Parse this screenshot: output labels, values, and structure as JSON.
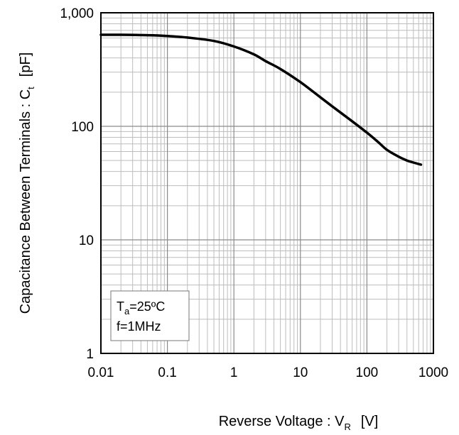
{
  "chart_data": {
    "type": "line",
    "xscale": "log",
    "yscale": "log",
    "xlim": [
      0.01,
      1000
    ],
    "ylim": [
      1,
      1000
    ],
    "x_ticks": [
      "0.01",
      "0.1",
      "1",
      "10",
      "100",
      "1000"
    ],
    "y_ticks": [
      "1",
      "10",
      "100",
      "1,000"
    ],
    "xlabel": {
      "main": "Reverse Voltage : V",
      "sub": "R",
      "unit": "[V]"
    },
    "ylabel": {
      "main": "Capacitance Between Terminals : C",
      "sub": "t",
      "unit": "[pF]"
    },
    "grid": true,
    "annotation": {
      "line1_main": "T",
      "line1_sub": "a",
      "line1_rest": "=25ºC",
      "line2": "f=1MHz"
    },
    "series": [
      {
        "x": [
          0.01,
          0.02,
          0.05,
          0.1,
          0.2,
          0.5,
          1,
          2,
          3,
          5,
          10,
          20,
          30,
          50,
          100,
          150,
          200,
          300,
          400,
          500,
          650
        ],
        "y": [
          640,
          640,
          635,
          625,
          605,
          565,
          505,
          430,
          375,
          320,
          245,
          180,
          150,
          120,
          88,
          72,
          62,
          54,
          50,
          48,
          46
        ],
        "color": "#000000"
      }
    ]
  }
}
